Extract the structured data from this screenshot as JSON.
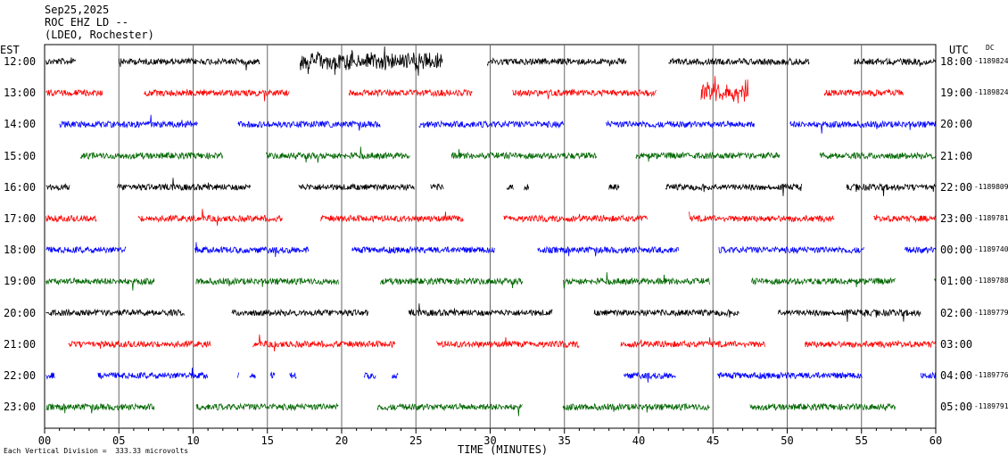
{
  "header": {
    "date": "Sep25,2025",
    "station": "ROC EHZ LD --",
    "network": "(LDEO, Rochester)"
  },
  "left_axis_label": "EST",
  "right_axis_label": "UTC",
  "dc_label": "DC",
  "scale_note": "Each Vertical Division =  333.33 microvolts",
  "chart_data": {
    "type": "line",
    "xlabel": "TIME (MINUTES)",
    "xlim": [
      0,
      60
    ],
    "x_ticks": [
      "00",
      "05",
      "10",
      "15",
      "20",
      "25",
      "30",
      "35",
      "40",
      "45",
      "50",
      "55",
      "60"
    ],
    "grid": "vertical lines every 5 minutes",
    "colors": [
      "#000000",
      "#ff0000",
      "#0000ff",
      "#006600"
    ],
    "rows": [
      {
        "est": "12:00",
        "utc": "18:00",
        "dc": "-1189824"
      },
      {
        "est": "13:00",
        "utc": "19:00",
        "dc": "-1189824"
      },
      {
        "est": "14:00",
        "utc": "20:00",
        "dc": ""
      },
      {
        "est": "15:00",
        "utc": "21:00",
        "dc": ""
      },
      {
        "est": "16:00",
        "utc": "22:00",
        "dc": "-1189809"
      },
      {
        "est": "17:00",
        "utc": "23:00",
        "dc": "-1189781"
      },
      {
        "est": "18:00",
        "utc": "00:00",
        "dc": "-1189740"
      },
      {
        "est": "19:00",
        "utc": "01:00",
        "dc": "-1189788"
      },
      {
        "est": "20:00",
        "utc": "02:00",
        "dc": "-1189779"
      },
      {
        "est": "21:00",
        "utc": "03:00",
        "dc": ""
      },
      {
        "est": "22:00",
        "utc": "04:00",
        "dc": "-1189776"
      },
      {
        "est": "23:00",
        "utc": "05:00",
        "dc": "-1189791"
      }
    ],
    "segments": [
      [
        [
          0.1,
          2.1
        ],
        [
          5,
          14.5
        ],
        [
          17.2,
          26.8
        ],
        [
          29.8,
          39.2
        ],
        [
          42,
          51.5
        ],
        [
          54.5,
          60
        ]
      ],
      [
        [
          0.1,
          3.9
        ],
        [
          6.7,
          16.5
        ],
        [
          20.5,
          28.8
        ],
        [
          31.5,
          41.2
        ],
        [
          44.2,
          47.4
        ],
        [
          52.5,
          57.8
        ]
      ],
      [
        [
          1,
          10.3
        ],
        [
          13,
          22.6
        ],
        [
          25.2,
          35
        ],
        [
          37.8,
          47.8
        ],
        [
          50.2,
          60
        ]
      ],
      [
        [
          2.4,
          12
        ],
        [
          14.9,
          24.6
        ],
        [
          27.4,
          37.2
        ],
        [
          39.8,
          49.5
        ],
        [
          52.2,
          60
        ]
      ],
      [
        [
          0.1,
          1.7
        ],
        [
          4.9,
          13.9
        ],
        [
          17.1,
          24.9
        ],
        [
          26,
          26.9
        ],
        [
          31.1,
          31.6
        ],
        [
          32.3,
          32.6
        ],
        [
          38,
          38.7
        ],
        [
          41.8,
          51
        ],
        [
          54,
          60
        ]
      ],
      [
        [
          0.1,
          3.5
        ],
        [
          6.3,
          16
        ],
        [
          18.6,
          28.2
        ],
        [
          30.9,
          40.6
        ],
        [
          43.4,
          53.2
        ],
        [
          55.8,
          60
        ]
      ],
      [
        [
          0.1,
          5.5
        ],
        [
          10.1,
          17.8
        ],
        [
          20.7,
          30.3
        ],
        [
          33.2,
          42.7
        ],
        [
          45.4,
          55.2
        ],
        [
          57.9,
          60
        ]
      ],
      [
        [
          0.1,
          7.4
        ],
        [
          10.2,
          19.8
        ],
        [
          22.6,
          32.2
        ],
        [
          34.9,
          44.8
        ],
        [
          47.6,
          57.3
        ],
        [
          59.9,
          60
        ]
      ],
      [
        [
          0.1,
          9.4
        ],
        [
          12.6,
          21.8
        ],
        [
          24.5,
          34.2
        ],
        [
          37,
          46.8
        ],
        [
          49.4,
          59
        ]
      ],
      [
        [
          1.6,
          11.2
        ],
        [
          14,
          23.6
        ],
        [
          26.4,
          36
        ],
        [
          38.8,
          48.5
        ],
        [
          51.2,
          60
        ]
      ],
      [
        [
          0.1,
          0.7
        ],
        [
          3.6,
          11
        ],
        [
          13,
          13.1
        ],
        [
          13.8,
          14.2
        ],
        [
          15.2,
          15.5
        ],
        [
          16.5,
          17
        ],
        [
          21.5,
          22.3
        ],
        [
          23.4,
          23.8
        ],
        [
          39,
          42.5
        ],
        [
          45.3,
          55.1
        ],
        [
          59,
          60
        ]
      ],
      [
        [
          0.1,
          7.4
        ],
        [
          10.2,
          19.8
        ],
        [
          22.4,
          32.2
        ],
        [
          34.9,
          44.8
        ],
        [
          47.5,
          57.3
        ]
      ]
    ],
    "bursts": [
      {
        "row": 0,
        "x0": 17.2,
        "x1": 26.8,
        "amp": 2.0
      },
      {
        "row": 1,
        "x0": 44.2,
        "x1": 47.4,
        "amp": 2.1
      },
      {
        "row": 1,
        "x0": 52.5,
        "x1": 56.5,
        "amp": 1.5
      },
      {
        "row": 2,
        "x0": 3.5,
        "x1": 10.3,
        "amp": 1.3
      },
      {
        "row": 3,
        "x0": 3.5,
        "x1": 10.3,
        "amp": 1.3
      }
    ]
  }
}
